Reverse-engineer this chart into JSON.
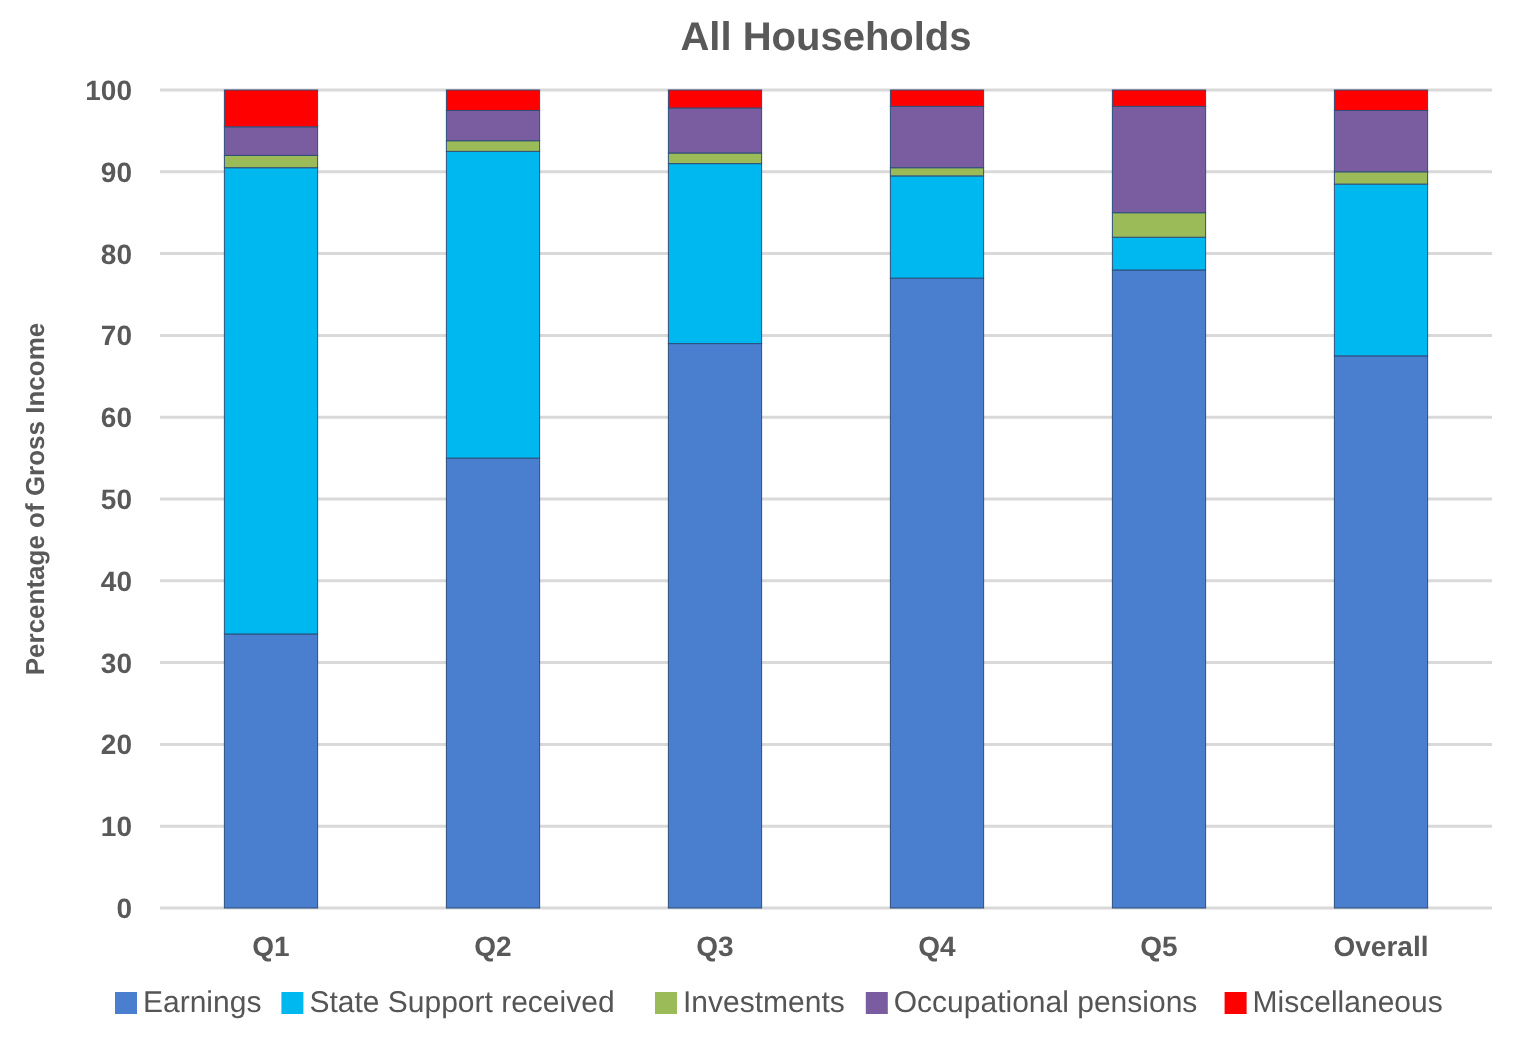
{
  "chart_data": {
    "type": "bar",
    "title": "All Households",
    "ylabel": "Percentage of Gross Income",
    "categories": [
      "Q1",
      "Q2",
      "Q3",
      "Q4",
      "Q5",
      "Overall"
    ],
    "stacked": true,
    "series": [
      {
        "name": "Earnings",
        "color": "#4a7fcf",
        "values": [
          33.5,
          55,
          69,
          77,
          78,
          67.5
        ]
      },
      {
        "name": "State Support received",
        "color": "#00b8f0",
        "values": [
          57,
          37.5,
          22,
          12.5,
          4,
          21
        ]
      },
      {
        "name": "Investments",
        "color": "#9bbb59",
        "values": [
          1.5,
          1.3,
          1.3,
          1,
          3,
          1.5
        ]
      },
      {
        "name": "Occupational pensions",
        "color": "#7a5ca0",
        "values": [
          3.5,
          3.7,
          5.5,
          7.5,
          13,
          7.5
        ]
      },
      {
        "name": "Miscellaneous",
        "color": "#ff0000",
        "values": [
          4.5,
          2.5,
          2.2,
          2,
          2,
          2.5
        ]
      }
    ],
    "ylim": [
      0,
      100
    ],
    "yticks": [
      0,
      10,
      20,
      30,
      40,
      50,
      60,
      70,
      80,
      90,
      100
    ],
    "grid": "y",
    "legend": "bottom"
  }
}
